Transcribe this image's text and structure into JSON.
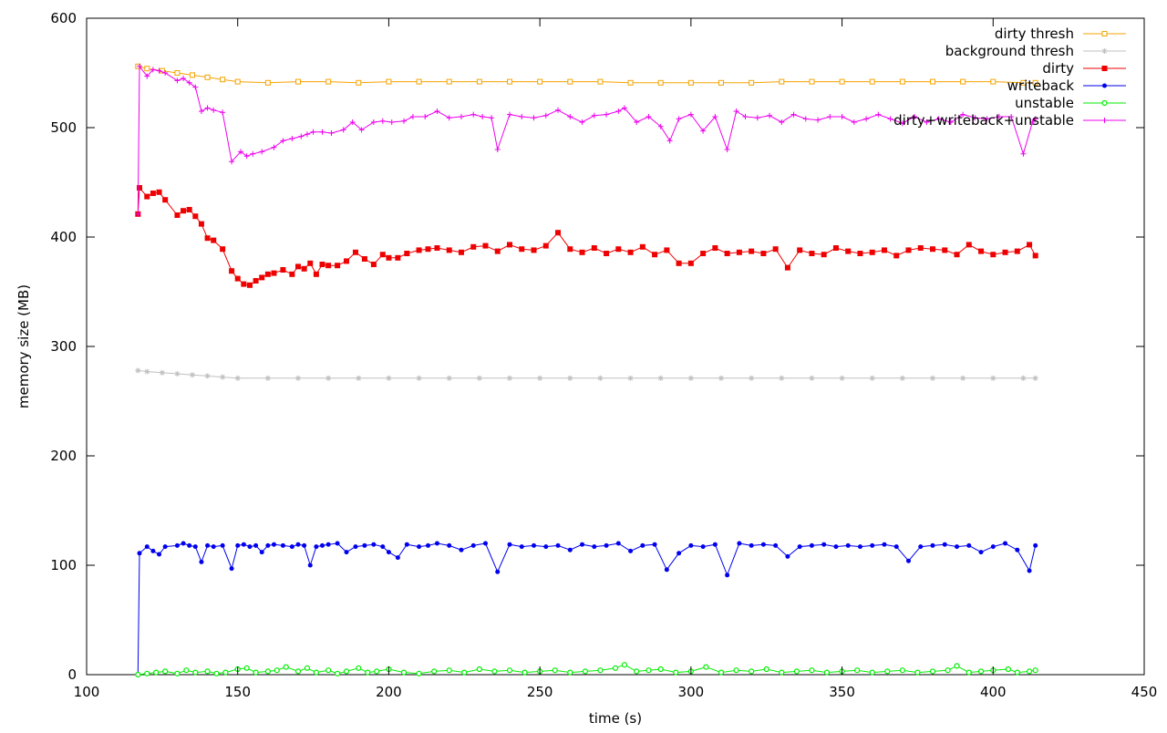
{
  "chart_data": {
    "type": "line",
    "xlabel": "time (s)",
    "ylabel": "memory size (MB)",
    "xlim": [
      100,
      450
    ],
    "ylim": [
      0,
      600
    ],
    "x_ticks": [
      "100",
      "150",
      "200",
      "250",
      "300",
      "350",
      "400",
      "450"
    ],
    "y_ticks": [
      "0",
      "100",
      "200",
      "300",
      "400",
      "500",
      "600"
    ],
    "grid": false,
    "legend_position": "top-right",
    "series": [
      {
        "name": "dirty thresh",
        "color": "#f5a300",
        "marker": "open-square",
        "x": [
          117,
          120,
          125,
          130,
          135,
          140,
          145,
          150,
          160,
          170,
          180,
          190,
          200,
          210,
          220,
          230,
          240,
          250,
          260,
          270,
          280,
          290,
          300,
          310,
          320,
          330,
          340,
          350,
          360,
          370,
          380,
          390,
          400,
          410,
          414
        ],
        "y": [
          556,
          554,
          552,
          550,
          548,
          546,
          544,
          542,
          541,
          542,
          542,
          541,
          542,
          542,
          542,
          542,
          542,
          542,
          542,
          542,
          541,
          541,
          541,
          541,
          541,
          542,
          542,
          542,
          542,
          542,
          542,
          542,
          542,
          541,
          541
        ]
      },
      {
        "name": "background thresh",
        "color": "#c0c0c0",
        "marker": "star",
        "x": [
          117,
          120,
          125,
          130,
          135,
          140,
          145,
          150,
          160,
          170,
          180,
          190,
          200,
          210,
          220,
          230,
          240,
          250,
          260,
          270,
          280,
          290,
          300,
          310,
          320,
          330,
          340,
          350,
          360,
          370,
          380,
          390,
          400,
          410,
          414
        ],
        "y": [
          278,
          277,
          276,
          275,
          274,
          273,
          272,
          271,
          271,
          271,
          271,
          271,
          271,
          271,
          271,
          271,
          271,
          271,
          271,
          271,
          271,
          271,
          271,
          271,
          271,
          271,
          271,
          271,
          271,
          271,
          271,
          271,
          271,
          271,
          271
        ]
      },
      {
        "name": "dirty",
        "color": "#ee0000",
        "marker": "filled-square",
        "x": [
          117,
          117.5,
          120,
          122,
          124,
          126,
          130,
          132,
          134,
          136,
          138,
          140,
          142,
          145,
          148,
          150,
          152,
          154,
          156,
          158,
          160,
          162,
          165,
          168,
          170,
          172,
          174,
          176,
          178,
          180,
          183,
          186,
          189,
          192,
          195,
          198,
          200,
          203,
          206,
          210,
          213,
          216,
          220,
          224,
          228,
          232,
          236,
          240,
          244,
          248,
          252,
          256,
          260,
          264,
          268,
          272,
          276,
          280,
          284,
          288,
          292,
          296,
          300,
          304,
          308,
          312,
          316,
          320,
          324,
          328,
          332,
          336,
          340,
          344,
          348,
          352,
          356,
          360,
          364,
          368,
          372,
          376,
          380,
          384,
          388,
          392,
          396,
          400,
          404,
          408,
          412,
          414
        ],
        "y": [
          421,
          445,
          437,
          440,
          441,
          434,
          420,
          424,
          425,
          419,
          412,
          399,
          397,
          389,
          369,
          362,
          357,
          356,
          360,
          363,
          366,
          367,
          370,
          366,
          373,
          371,
          376,
          366,
          375,
          374,
          374,
          378,
          386,
          380,
          375,
          384,
          381,
          381,
          385,
          388,
          389,
          390,
          388,
          386,
          391,
          392,
          387,
          393,
          389,
          388,
          392,
          404,
          389,
          386,
          390,
          385,
          389,
          386,
          391,
          384,
          388,
          376,
          376,
          385,
          390,
          385,
          386,
          387,
          385,
          389,
          372,
          388,
          385,
          384,
          390,
          387,
          385,
          386,
          388,
          383,
          388,
          390,
          389,
          388,
          384,
          393,
          387,
          384,
          386,
          387,
          393,
          383
        ]
      },
      {
        "name": "writeback",
        "color": "#0000ee",
        "marker": "filled-circle",
        "x": [
          117,
          117.5,
          120,
          122,
          124,
          126,
          130,
          132,
          134,
          136,
          138,
          140,
          142,
          145,
          148,
          150,
          152,
          154,
          156,
          158,
          160,
          162,
          165,
          168,
          170,
          172,
          174,
          176,
          178,
          180,
          183,
          186,
          189,
          192,
          195,
          198,
          200,
          203,
          206,
          210,
          213,
          216,
          220,
          224,
          228,
          232,
          236,
          240,
          244,
          248,
          252,
          256,
          260,
          264,
          268,
          272,
          276,
          280,
          284,
          288,
          292,
          296,
          300,
          304,
          308,
          312,
          316,
          320,
          324,
          328,
          332,
          336,
          340,
          344,
          348,
          352,
          356,
          360,
          364,
          368,
          372,
          376,
          380,
          384,
          388,
          392,
          396,
          400,
          404,
          408,
          412,
          414
        ],
        "y": [
          0,
          111,
          117,
          113,
          110,
          117,
          118,
          120,
          118,
          117,
          103,
          118,
          117,
          118,
          97,
          118,
          119,
          117,
          118,
          112,
          118,
          119,
          118,
          117,
          119,
          118,
          100,
          117,
          118,
          119,
          120,
          112,
          117,
          118,
          119,
          117,
          112,
          107,
          119,
          117,
          118,
          120,
          118,
          114,
          118,
          120,
          94,
          119,
          117,
          118,
          117,
          118,
          114,
          119,
          117,
          118,
          120,
          113,
          118,
          119,
          96,
          111,
          118,
          117,
          119,
          91,
          120,
          118,
          119,
          118,
          108,
          117,
          118,
          119,
          117,
          118,
          117,
          118,
          119,
          117,
          104,
          117,
          118,
          119,
          117,
          118,
          112,
          117,
          120,
          114,
          95,
          118
        ]
      },
      {
        "name": "unstable",
        "color": "#00ee00",
        "marker": "open-circle",
        "x": [
          117,
          120,
          123,
          126,
          130,
          133,
          136,
          140,
          143,
          146,
          150,
          153,
          156,
          160,
          163,
          166,
          170,
          173,
          176,
          180,
          183,
          186,
          190,
          193,
          196,
          200,
          205,
          210,
          215,
          220,
          225,
          230,
          235,
          240,
          245,
          250,
          255,
          260,
          265,
          270,
          275,
          278,
          282,
          286,
          290,
          295,
          300,
          305,
          310,
          315,
          320,
          325,
          330,
          335,
          340,
          345,
          350,
          355,
          360,
          365,
          370,
          375,
          380,
          385,
          388,
          392,
          396,
          400,
          405,
          408,
          412,
          414
        ],
        "y": [
          0,
          1,
          2,
          3,
          1,
          4,
          2,
          3,
          1,
          2,
          5,
          6,
          2,
          3,
          4,
          7,
          3,
          6,
          2,
          4,
          1,
          3,
          6,
          2,
          3,
          5,
          2,
          1,
          3,
          4,
          2,
          5,
          3,
          4,
          2,
          3,
          4,
          2,
          3,
          4,
          6,
          9,
          3,
          4,
          5,
          2,
          3,
          7,
          2,
          4,
          3,
          5,
          2,
          3,
          4,
          2,
          3,
          4,
          2,
          3,
          4,
          2,
          3,
          4,
          8,
          2,
          3,
          4,
          5,
          2,
          3,
          4
        ]
      },
      {
        "name": "dirty+writeback+unstable",
        "color": "#ee00ee",
        "marker": "plus",
        "x": [
          117,
          117.5,
          120,
          122,
          124,
          126,
          130,
          132,
          134,
          136,
          138,
          140,
          142,
          145,
          148,
          151,
          153,
          155,
          158,
          162,
          165,
          168,
          171,
          173,
          175,
          178,
          181,
          185,
          188,
          191,
          195,
          198,
          201,
          205,
          208,
          212,
          216,
          220,
          224,
          228,
          231,
          234,
          236,
          240,
          244,
          248,
          252,
          256,
          260,
          264,
          268,
          272,
          276,
          278,
          282,
          286,
          290,
          293,
          296,
          300,
          304,
          308,
          312,
          315,
          318,
          322,
          326,
          330,
          334,
          338,
          342,
          346,
          350,
          354,
          358,
          362,
          366,
          370,
          374,
          378,
          382,
          386,
          390,
          394,
          398,
          402,
          406,
          410,
          413,
          414
        ],
        "y": [
          421,
          556,
          547,
          553,
          552,
          550,
          543,
          545,
          541,
          537,
          515,
          518,
          516,
          514,
          469,
          478,
          474,
          476,
          478,
          482,
          488,
          490,
          492,
          494,
          496,
          496,
          495,
          498,
          505,
          498,
          505,
          506,
          505,
          506,
          510,
          510,
          515,
          509,
          510,
          512,
          510,
          509,
          480,
          512,
          510,
          509,
          511,
          516,
          510,
          505,
          511,
          512,
          515,
          518,
          505,
          510,
          501,
          488,
          508,
          512,
          497,
          510,
          480,
          515,
          510,
          509,
          511,
          505,
          512,
          508,
          507,
          510,
          510,
          505,
          508,
          512,
          508,
          504,
          510,
          505,
          508,
          505,
          512,
          509,
          508,
          510,
          510,
          476,
          505,
          508
        ]
      }
    ]
  }
}
